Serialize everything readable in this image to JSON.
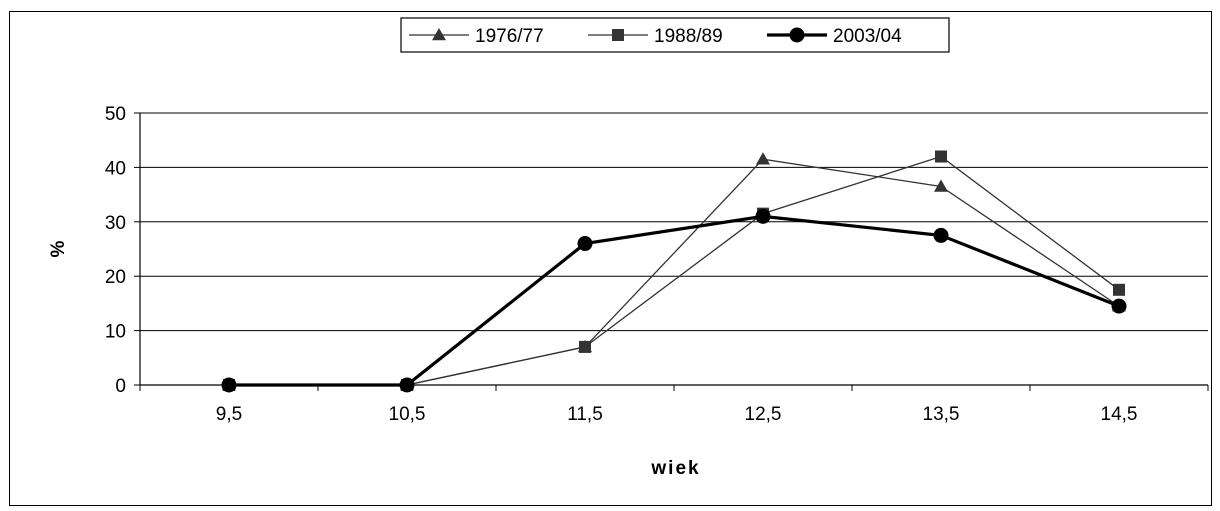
{
  "chart_data": {
    "type": "line",
    "categories": [
      "9,5",
      "10,5",
      "11,5",
      "12,5",
      "13,5",
      "14,5"
    ],
    "series": [
      {
        "name": "1976/77",
        "values": [
          0,
          0,
          7,
          41.5,
          36.5,
          14.5
        ],
        "marker": "triangle",
        "color": "#333333"
      },
      {
        "name": "1988/89",
        "values": [
          0,
          0,
          7,
          31.5,
          42,
          17.5
        ],
        "marker": "square",
        "color": "#333333"
      },
      {
        "name": "2003/04",
        "values": [
          0,
          0,
          26,
          31,
          27.5,
          14.5
        ],
        "marker": "circle",
        "color": "#000000"
      }
    ],
    "yticks": [
      "0",
      "10",
      "20",
      "30",
      "40",
      "50"
    ],
    "ylim": [
      0,
      50
    ],
    "xlabel": "wiek",
    "ylabel": "%",
    "grid": "horizontal",
    "legend_position": "top"
  }
}
